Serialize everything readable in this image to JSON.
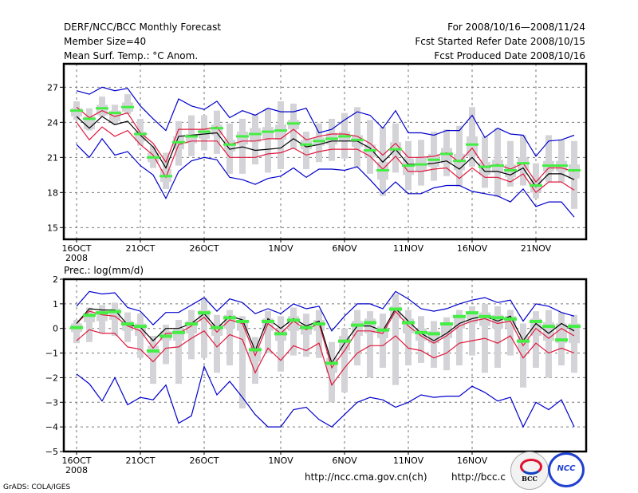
{
  "header": {
    "title": "DERF/NCC/BCC Monthly Forecast",
    "member_size": "Member Size=40",
    "variable": "Mean Surf. Temp.: °C Anom.",
    "period": "For 2008/10/16—2008/11/24",
    "started": "Fcst Started Refer Date 2008/10/15",
    "produced": "Fcst Produced Date 2008/10/16"
  },
  "footer": {
    "grads": "GrADS: COLA/IGES",
    "url_ncc": "http://ncc.cma.gov.cn(ch)",
    "url_bcc": "http://bcc.c",
    "logo_bcc": "BCC",
    "logo_ncc": "NCC"
  },
  "colors": {
    "ensemble_mean": "#000000",
    "spread_inner": "#e0183c",
    "spread_outer": "#0000cc",
    "observed": "#44ee44",
    "member_box": "#d4d4d8"
  },
  "chart_data": [
    {
      "type": "line",
      "title": "Mean Surf. Temp.: °C Anom.",
      "xlabel": "",
      "ylabel": "",
      "ylim": [
        14,
        29
      ],
      "yticks": [
        15,
        18,
        21,
        24,
        27
      ],
      "ytick_labels": [
        "15",
        "18",
        "21",
        "24",
        "27"
      ],
      "xticks_day_index": [
        0,
        5,
        10,
        16,
        21,
        26,
        31,
        36
      ],
      "xtick_labels": [
        "16OCT",
        "21OCT",
        "26OCT",
        "1NOV",
        "6NOV",
        "11NOV",
        "16NOV",
        "21NOV"
      ],
      "xtick_year": "2008",
      "grid": true,
      "x_start": "2008-10-16",
      "n_days": 40,
      "series": [
        {
          "name": "ensemble_mean",
          "values": [
            24.5,
            23.5,
            24.5,
            23.8,
            24.1,
            22.9,
            21.9,
            20.1,
            22.8,
            22.9,
            23.0,
            23.1,
            21.7,
            21.9,
            21.6,
            21.7,
            21.8,
            22.6,
            21.9,
            22.1,
            22.4,
            22.4,
            22.4,
            21.8,
            20.6,
            21.7,
            20.4,
            20.4,
            20.5,
            20.7,
            20.0,
            21.0,
            19.8,
            19.8,
            19.5,
            20.1,
            18.5,
            19.6,
            19.6,
            19.1
          ]
        },
        {
          "name": "inner_upper",
          "values": [
            25.3,
            24.4,
            25.0,
            24.5,
            24.8,
            23.1,
            22.2,
            20.6,
            23.4,
            23.4,
            23.4,
            23.6,
            22.1,
            22.4,
            22.4,
            22.6,
            22.6,
            23.4,
            22.5,
            22.8,
            23.0,
            23.0,
            22.8,
            22.2,
            21.2,
            22.2,
            21.0,
            21.0,
            21.1,
            21.4,
            20.6,
            21.8,
            20.2,
            20.4,
            20.0,
            20.5,
            18.9,
            20.1,
            20.1,
            19.8
          ]
        },
        {
          "name": "inner_lower",
          "values": [
            24.0,
            22.5,
            23.6,
            22.8,
            23.3,
            22.1,
            21.2,
            19.3,
            22.1,
            22.4,
            22.4,
            22.4,
            21.0,
            21.0,
            21.0,
            21.3,
            21.4,
            21.8,
            21.2,
            21.5,
            21.7,
            21.7,
            21.7,
            21.1,
            20.0,
            21.1,
            19.8,
            19.8,
            20.0,
            20.1,
            19.2,
            20.1,
            19.3,
            19.3,
            18.9,
            19.6,
            18.0,
            18.9,
            18.9,
            18.2
          ]
        },
        {
          "name": "outer_upper",
          "values": [
            26.7,
            26.4,
            27.0,
            26.7,
            26.9,
            25.4,
            24.3,
            23.3,
            26.0,
            25.4,
            25.1,
            25.8,
            24.4,
            25.0,
            24.6,
            25.2,
            24.9,
            24.9,
            25.2,
            23.1,
            23.4,
            24.2,
            24.9,
            24.6,
            23.5,
            25.0,
            23.1,
            23.1,
            22.9,
            23.3,
            23.3,
            24.6,
            22.7,
            23.5,
            23.0,
            22.9,
            21.1,
            22.4,
            22.5,
            22.9
          ]
        },
        {
          "name": "outer_lower",
          "values": [
            22.1,
            21.0,
            22.6,
            21.2,
            21.5,
            20.3,
            19.5,
            17.5,
            19.8,
            20.7,
            21.0,
            20.8,
            19.3,
            19.1,
            18.7,
            19.2,
            19.4,
            20.1,
            19.3,
            20.0,
            20.0,
            19.9,
            20.2,
            19.1,
            17.9,
            18.9,
            17.9,
            17.9,
            18.4,
            18.6,
            18.6,
            18.1,
            17.9,
            17.7,
            17.2,
            18.3,
            16.8,
            17.2,
            17.2,
            15.9
          ]
        },
        {
          "name": "observed",
          "values": [
            25.0,
            24.3,
            25.2,
            24.8,
            25.3,
            23.0,
            21.0,
            19.4,
            22.3,
            22.8,
            23.2,
            23.5,
            22.1,
            22.8,
            23.0,
            23.2,
            23.3,
            23.9,
            22.1,
            22.4,
            22.6,
            22.8,
            22.5,
            21.6,
            19.9,
            21.7,
            20.3,
            20.4,
            20.8,
            21.3,
            20.7,
            22.1,
            20.2,
            20.3,
            19.9,
            20.5,
            18.6,
            20.3,
            20.3,
            19.9
          ]
        },
        {
          "name": "box_max",
          "values": [
            25.8,
            25.2,
            26.2,
            25.5,
            26.4,
            24.3,
            22.0,
            21.4,
            24.1,
            24.6,
            24.6,
            25.0,
            23.9,
            24.3,
            24.7,
            25.2,
            25.8,
            25.6,
            23.2,
            23.9,
            24.3,
            24.8,
            25.3,
            24.2,
            23.6,
            23.9,
            22.4,
            22.5,
            23.2,
            23.4,
            23.7,
            25.3,
            22.8,
            23.5,
            22.4,
            22.9,
            20.5,
            22.9,
            22.5,
            22.4
          ]
        },
        {
          "name": "box_q3",
          "values": [
            25.2,
            24.5,
            25.5,
            25.0,
            25.7,
            23.2,
            21.4,
            20.0,
            22.8,
            23.0,
            23.4,
            23.8,
            22.5,
            23.2,
            23.5,
            23.6,
            23.8,
            24.2,
            22.5,
            22.7,
            23.1,
            23.2,
            22.9,
            22.1,
            20.6,
            22.3,
            20.9,
            21.0,
            21.3,
            21.8,
            21.3,
            22.8,
            20.6,
            20.8,
            20.4,
            21.0,
            19.2,
            20.7,
            20.7,
            20.4
          ]
        },
        {
          "name": "box_q1",
          "values": [
            24.5,
            23.4,
            24.6,
            24.1,
            24.9,
            22.4,
            20.6,
            18.9,
            21.7,
            22.2,
            22.6,
            22.9,
            21.5,
            22.1,
            22.3,
            22.6,
            22.5,
            23.4,
            21.7,
            22.0,
            22.1,
            22.4,
            21.9,
            21.0,
            19.1,
            21.2,
            19.5,
            19.8,
            20.2,
            20.5,
            19.9,
            21.1,
            19.5,
            19.7,
            19.3,
            19.9,
            18.0,
            19.8,
            19.8,
            19.2
          ]
        },
        {
          "name": "box_min",
          "values": [
            24.2,
            23.3,
            24.5,
            23.8,
            24.7,
            22.0,
            20.1,
            18.3,
            20.3,
            21.1,
            21.6,
            21.3,
            19.6,
            19.6,
            20.4,
            19.7,
            20.0,
            21.7,
            20.0,
            20.6,
            20.7,
            20.9,
            20.2,
            19.6,
            17.7,
            19.7,
            18.2,
            18.6,
            19.0,
            19.4,
            18.5,
            20.2,
            18.4,
            17.6,
            18.5,
            18.6,
            17.5,
            18.9,
            18.9,
            16.6
          ]
        }
      ]
    },
    {
      "type": "line",
      "title": "Prec.: log(mm/d)",
      "xlabel": "",
      "ylabel": "",
      "ylim": [
        -5,
        2
      ],
      "yticks": [
        -5,
        -4,
        -3,
        -2,
        -1,
        0,
        1,
        2
      ],
      "ytick_labels": [
        "−5",
        "−4",
        "−3",
        "−2",
        "−1",
        "0",
        "1",
        "2"
      ],
      "xticks_day_index": [
        0,
        5,
        10,
        16,
        21,
        26,
        31
      ],
      "xtick_labels": [
        "16OCT",
        "21OCT",
        "26OCT",
        "1NOV",
        "6NOV",
        "11NOV",
        "16NOV"
      ],
      "xtick_year": "2008",
      "grid": true,
      "x_start": "2008-10-16",
      "n_days": 40,
      "series": [
        {
          "name": "ensemble_mean",
          "values": [
            0.2,
            0.8,
            0.75,
            0.75,
            0.15,
            0.05,
            -0.5,
            0.0,
            0.0,
            0.2,
            0.6,
            0.0,
            0.5,
            0.35,
            -0.9,
            0.4,
            0.0,
            0.4,
            0.1,
            0.3,
            -1.4,
            -0.6,
            0.1,
            0.1,
            -0.1,
            0.8,
            0.3,
            -0.2,
            -0.5,
            -0.2,
            0.2,
            0.4,
            0.5,
            0.3,
            0.5,
            -0.5,
            0.2,
            -0.2,
            0.2,
            -0.1
          ]
        },
        {
          "name": "inner_upper",
          "values": [
            0.2,
            0.7,
            0.55,
            0.5,
            0.1,
            -0.1,
            -0.8,
            -0.2,
            -0.2,
            0.1,
            0.45,
            -0.15,
            0.35,
            0.2,
            -1.1,
            0.2,
            -0.2,
            0.3,
            -0.05,
            0.2,
            -1.6,
            -0.9,
            -0.1,
            -0.1,
            -0.2,
            0.7,
            0.1,
            -0.3,
            -0.6,
            -0.3,
            0.1,
            0.3,
            0.4,
            0.2,
            0.3,
            -0.7,
            0.0,
            -0.4,
            0.0,
            -0.3
          ]
        },
        {
          "name": "inner_lower",
          "values": [
            -0.5,
            -0.05,
            -0.2,
            -0.2,
            -0.75,
            -0.85,
            -1.35,
            -0.8,
            -0.75,
            -0.4,
            -0.1,
            -0.75,
            -0.25,
            -0.45,
            -1.8,
            -0.8,
            -1.3,
            -0.7,
            -0.9,
            -0.6,
            -2.3,
            -1.6,
            -1.0,
            -0.7,
            -0.7,
            -0.3,
            -0.8,
            -0.9,
            -1.2,
            -1.0,
            -0.6,
            -0.5,
            -0.4,
            -0.6,
            -0.3,
            -1.2,
            -0.6,
            -1.0,
            -0.8,
            -1.0
          ]
        },
        {
          "name": "outer_upper",
          "values": [
            0.9,
            1.5,
            1.4,
            1.45,
            0.85,
            0.7,
            0.15,
            0.65,
            0.65,
            0.95,
            1.25,
            0.7,
            1.2,
            1.05,
            0.6,
            0.8,
            0.6,
            1.0,
            0.8,
            0.9,
            -0.1,
            0.5,
            1.0,
            1.0,
            0.8,
            1.5,
            1.2,
            0.8,
            0.7,
            0.8,
            1.0,
            1.15,
            1.25,
            1.05,
            1.15,
            0.3,
            1.0,
            0.9,
            0.65,
            0.5
          ]
        },
        {
          "name": "outer_lower",
          "values": [
            -1.85,
            -2.25,
            -2.95,
            -2.0,
            -3.1,
            -2.8,
            -2.9,
            -2.3,
            -3.85,
            -3.55,
            -1.55,
            -2.7,
            -2.15,
            -2.8,
            -3.5,
            -4.0,
            -4.0,
            -3.3,
            -3.2,
            -3.7,
            -4.0,
            -3.5,
            -3.0,
            -2.8,
            -2.9,
            -3.2,
            -3.0,
            -2.7,
            -2.8,
            -2.75,
            -2.75,
            -2.35,
            -2.6,
            -2.95,
            -2.8,
            -4.0,
            -3.0,
            -3.3,
            -2.9,
            -4.0
          ]
        },
        {
          "name": "observed",
          "values": [
            0.05,
            0.55,
            0.65,
            0.7,
            0.2,
            0.1,
            -0.9,
            -0.3,
            -0.15,
            0.2,
            0.65,
            0.05,
            0.45,
            0.3,
            -0.85,
            0.3,
            -0.2,
            0.35,
            0.05,
            0.2,
            -1.4,
            -0.5,
            0.15,
            0.25,
            -0.05,
            0.8,
            0.25,
            -0.15,
            -0.2,
            0.2,
            0.5,
            0.65,
            0.5,
            0.45,
            0.4,
            -0.5,
            0.3,
            0.1,
            -0.45,
            0.1
          ]
        },
        {
          "name": "box_max",
          "values": [
            0.35,
            0.85,
            0.95,
            1.05,
            0.65,
            0.6,
            -0.3,
            0.15,
            0.35,
            0.75,
            1.25,
            0.55,
            0.75,
            0.5,
            -0.35,
            0.7,
            0.5,
            0.85,
            0.6,
            0.75,
            -0.55,
            0.0,
            0.75,
            0.7,
            0.6,
            1.4,
            0.75,
            0.5,
            0.3,
            0.45,
            0.75,
            0.9,
            1.0,
            0.9,
            0.75,
            0.2,
            0.7,
            0.75,
            0.65,
            0.55
          ]
        },
        {
          "name": "box_min",
          "values": [
            -0.6,
            -0.55,
            -0.2,
            -0.3,
            -0.55,
            -1.2,
            -2.25,
            -1.45,
            -2.25,
            -1.25,
            -1.2,
            -1.8,
            -1.5,
            -3.25,
            -2.25,
            -1.0,
            -1.75,
            -1.1,
            -1.15,
            -1.2,
            -3.0,
            -2.6,
            -1.5,
            -2.0,
            -1.6,
            -2.3,
            -1.5,
            -1.4,
            -1.6,
            -1.7,
            -1.5,
            -1.1,
            -1.8,
            -1.6,
            -1.1,
            -2.4,
            -1.6,
            -2.0,
            -1.5,
            -1.8
          ]
        },
        {
          "name": "box_q3",
          "values": [
            0.2,
            0.6,
            0.7,
            0.8,
            0.3,
            0.2,
            -0.7,
            -0.1,
            0.0,
            0.3,
            0.75,
            0.2,
            0.55,
            0.35,
            -0.75,
            0.4,
            0.0,
            0.5,
            0.2,
            0.35,
            -1.2,
            -0.3,
            0.3,
            0.4,
            0.1,
            0.9,
            0.4,
            0.0,
            -0.1,
            0.2,
            0.55,
            0.7,
            0.65,
            0.55,
            0.5,
            -0.3,
            0.4,
            0.25,
            0.2,
            0.2
          ]
        },
        {
          "name": "box_q1",
          "values": [
            -0.15,
            0.25,
            0.3,
            0.35,
            -0.1,
            -0.3,
            -1.15,
            -0.5,
            -0.5,
            -0.2,
            0.3,
            -0.3,
            0.0,
            -0.1,
            -1.35,
            -0.1,
            -0.5,
            -0.1,
            -0.25,
            -0.1,
            -1.8,
            -0.9,
            -0.3,
            -0.2,
            -0.4,
            0.4,
            -0.2,
            -0.5,
            -0.6,
            -0.4,
            0.0,
            0.2,
            0.1,
            0.0,
            0.0,
            -0.9,
            -0.3,
            -0.5,
            -0.6,
            -0.6
          ]
        }
      ]
    }
  ]
}
